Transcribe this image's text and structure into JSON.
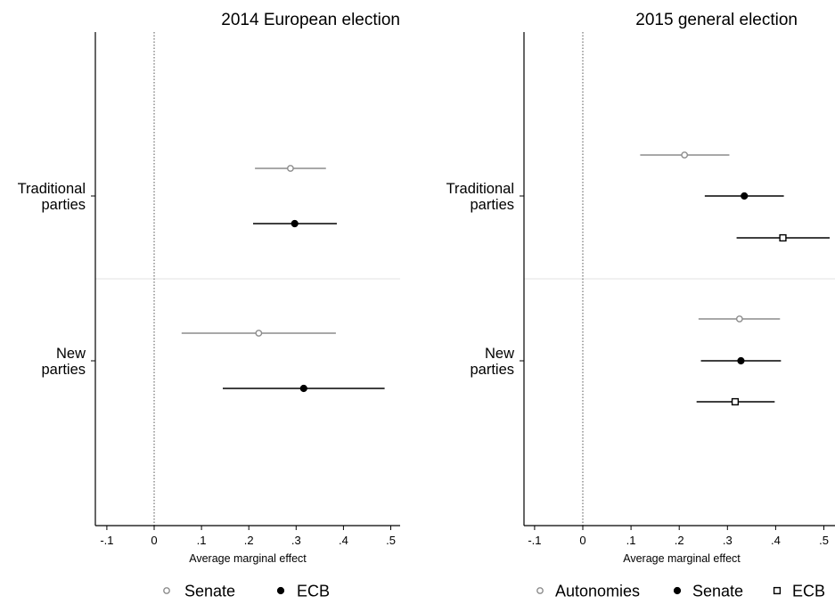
{
  "chart_data": [
    {
      "type": "scatter",
      "title": "2014 European election",
      "xlabel": "Average marginal effect",
      "xlim": [
        -0.12,
        0.525
      ],
      "xticks": [
        -0.1,
        0,
        0.1,
        0.2,
        0.3,
        0.4,
        0.5
      ],
      "xtick_labels": [
        "-.1",
        "0",
        ".1",
        ".2",
        ".3",
        ".4",
        ".5"
      ],
      "reference_line": 0,
      "categories": [
        {
          "label": [
            "Traditional",
            "parties"
          ]
        },
        {
          "label": [
            "New",
            "parties"
          ]
        }
      ],
      "series": [
        {
          "name": "Senate",
          "marker": "hollow-circle",
          "color": "#8c8c8c",
          "points": [
            {
              "category": 0,
              "estimate": 0.288,
              "ci": [
                0.213,
                0.363
              ]
            },
            {
              "category": 1,
              "estimate": 0.221,
              "ci": [
                0.058,
                0.384
              ]
            }
          ]
        },
        {
          "name": "ECB",
          "marker": "filled-circle",
          "color": "#000000",
          "points": [
            {
              "category": 0,
              "estimate": 0.297,
              "ci": [
                0.209,
                0.386
              ]
            },
            {
              "category": 1,
              "estimate": 0.316,
              "ci": [
                0.145,
                0.487
              ]
            }
          ]
        }
      ],
      "legend": "bottom"
    },
    {
      "type": "scatter",
      "title": "2015 general election",
      "xlabel": "Average marginal effect",
      "xlim": [
        -0.12,
        0.525
      ],
      "xticks": [
        -0.1,
        0,
        0.1,
        0.2,
        0.3,
        0.4,
        0.5
      ],
      "xtick_labels": [
        "-.1",
        "0",
        ".1",
        ".2",
        ".3",
        ".4",
        ".5"
      ],
      "reference_line": 0,
      "categories": [
        {
          "label": [
            "Traditional",
            "parties"
          ]
        },
        {
          "label": [
            "New",
            "parties"
          ]
        }
      ],
      "series": [
        {
          "name": "Autonomies",
          "marker": "hollow-circle",
          "color": "#8c8c8c",
          "points": [
            {
              "category": 0,
              "estimate": 0.211,
              "ci": [
                0.119,
                0.304
              ]
            },
            {
              "category": 1,
              "estimate": 0.325,
              "ci": [
                0.24,
                0.409
              ]
            }
          ]
        },
        {
          "name": "Senate",
          "marker": "filled-circle",
          "color": "#000000",
          "points": [
            {
              "category": 0,
              "estimate": 0.335,
              "ci": [
                0.253,
                0.417
              ]
            },
            {
              "category": 1,
              "estimate": 0.328,
              "ci": [
                0.245,
                0.411
              ]
            }
          ]
        },
        {
          "name": "ECB",
          "marker": "hollow-square",
          "color": "#000000",
          "points": [
            {
              "category": 0,
              "estimate": 0.415,
              "ci": [
                0.319,
                0.512
              ]
            },
            {
              "category": 1,
              "estimate": 0.316,
              "ci": [
                0.236,
                0.398
              ]
            }
          ]
        }
      ],
      "legend": "bottom"
    }
  ]
}
